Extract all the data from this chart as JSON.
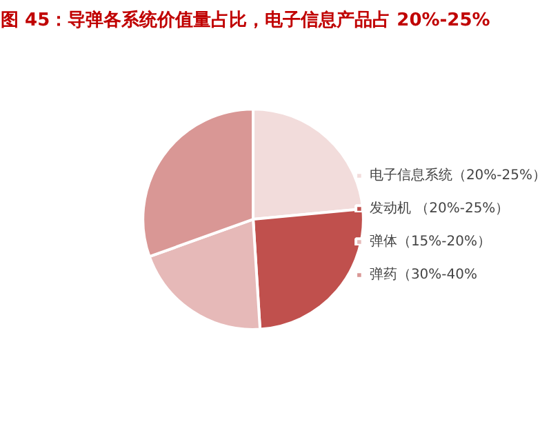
{
  "chart_data": {
    "type": "pie",
    "title": "图 45：导弹各系统价值量占比，电子信息产品占 20%-25%",
    "categories": [
      "电子信息系统（20%-25%）",
      "发动机 （20%-25%）",
      "弹体（15%-20%）",
      "弹药（30%-40%"
    ],
    "values": [
      23.5,
      25.5,
      20.5,
      30.5
    ],
    "colors": [
      "#f2dcdb",
      "#c0504d",
      "#e6b9b8",
      "#d99795"
    ],
    "legend": "right"
  }
}
